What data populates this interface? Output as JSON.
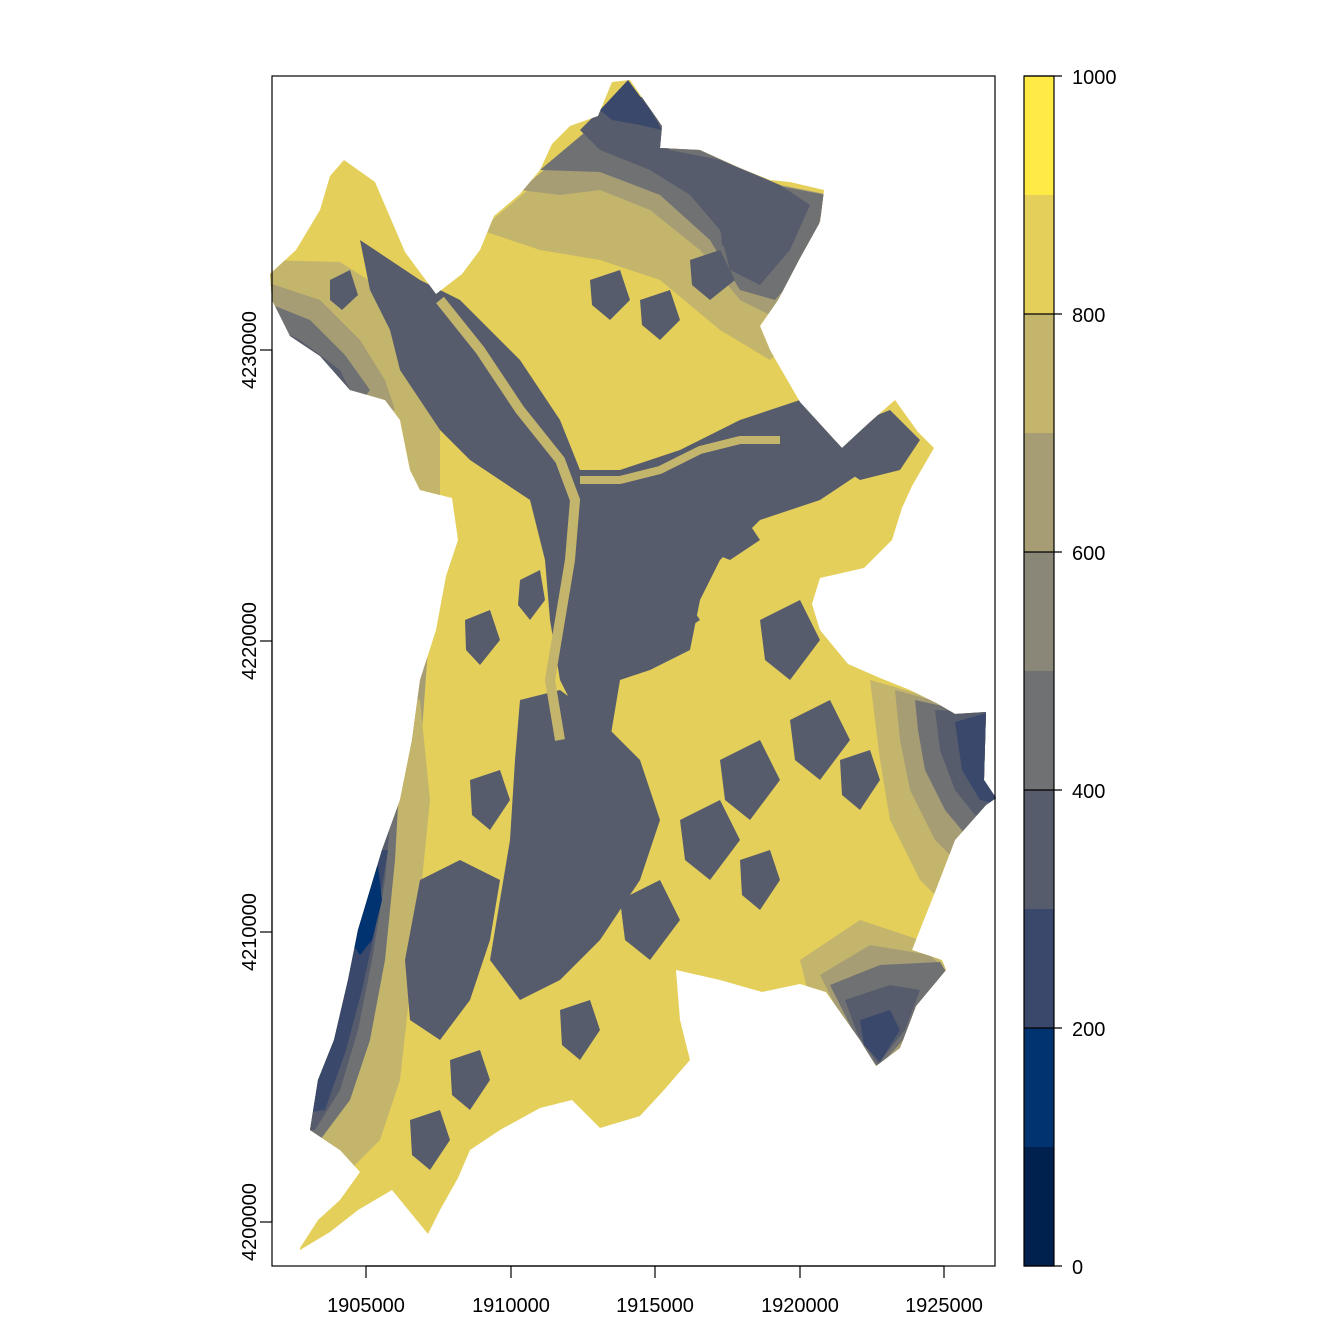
{
  "x_axis": {
    "ticks": [
      "1905000",
      "1910000",
      "1915000",
      "1920000",
      "1925000"
    ]
  },
  "y_axis": {
    "ticks": [
      "4200000",
      "4210000",
      "4220000",
      "4230000"
    ]
  },
  "legend": {
    "labels": [
      "0",
      "200",
      "400",
      "600",
      "800",
      "1000"
    ],
    "classes": [
      {
        "from": 0,
        "to": 100,
        "color": "#00204d"
      },
      {
        "from": 100,
        "to": 200,
        "color": "#00336f"
      },
      {
        "from": 200,
        "to": 300,
        "color": "#39486b"
      },
      {
        "from": 300,
        "to": 400,
        "color": "#575c6d"
      },
      {
        "from": 400,
        "to": 500,
        "color": "#707173"
      },
      {
        "from": 500,
        "to": 600,
        "color": "#8a8779"
      },
      {
        "from": 600,
        "to": 700,
        "color": "#a69d75"
      },
      {
        "from": 700,
        "to": 800,
        "color": "#c4b56c"
      },
      {
        "from": 800,
        "to": 900,
        "color": "#e4cf5b"
      },
      {
        "from": 900,
        "to": 1000,
        "color": "#ffea46"
      }
    ]
  },
  "map_colors": {
    "dark_blue": "#00336f",
    "blue": "#39486b",
    "slate": "#575c6d",
    "gray": "#707173",
    "khaki": "#a69d75",
    "olive": "#c4b56c",
    "yellow": "#e4cf5b"
  }
}
